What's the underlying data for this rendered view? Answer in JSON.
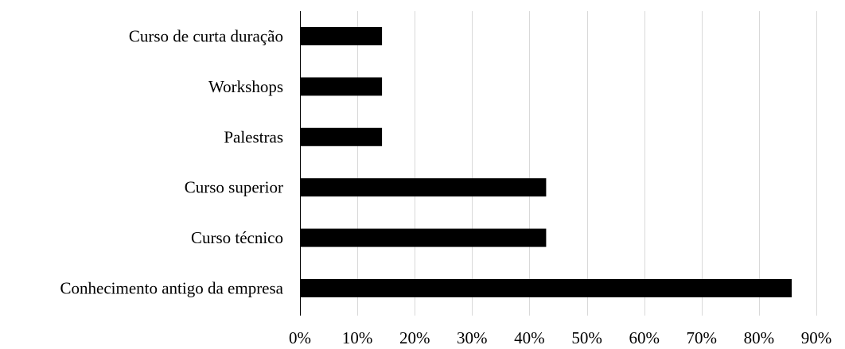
{
  "chart_data": {
    "type": "bar",
    "orientation": "horizontal",
    "categories": [
      "Curso de curta duração",
      "Workshops",
      "Palestras",
      "Curso superior",
      "Curso técnico",
      "Conhecimento antigo da empresa"
    ],
    "values": [
      14.3,
      14.3,
      14.3,
      42.9,
      42.9,
      85.7
    ],
    "xlim": [
      0,
      90
    ],
    "x_ticks": [
      0,
      10,
      20,
      30,
      40,
      50,
      60,
      70,
      80,
      90
    ],
    "x_tick_labels": [
      "0%",
      "10%",
      "20%",
      "30%",
      "40%",
      "50%",
      "60%",
      "70%",
      "80%",
      "90%"
    ],
    "grid": "vertical",
    "legend": "none",
    "bar_color": "#000000",
    "grid_color": "#d9d9d9"
  }
}
